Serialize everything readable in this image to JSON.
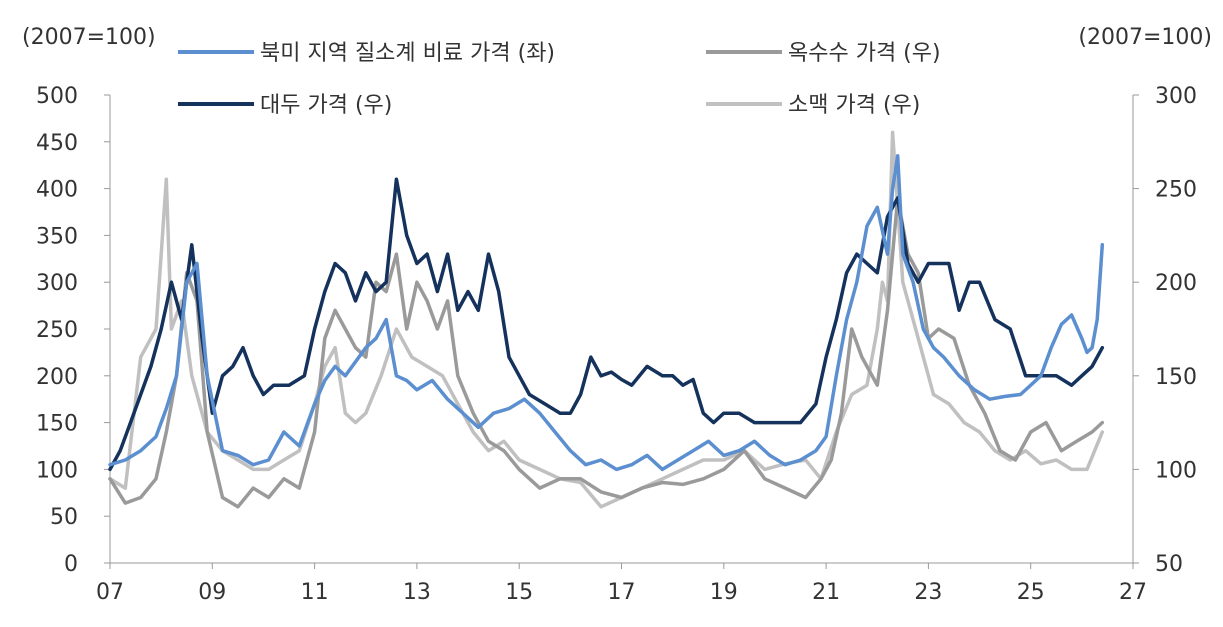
{
  "chart_data": {
    "type": "line",
    "left_unit": "(2007=100)",
    "right_unit": "(2007=100)",
    "x_ticks": [
      "07",
      "09",
      "11",
      "13",
      "15",
      "17",
      "19",
      "21",
      "23",
      "25",
      "27"
    ],
    "xlim": [
      2007,
      2027
    ],
    "left_axis": {
      "ticks": [
        "0",
        "50",
        "100",
        "150",
        "200",
        "250",
        "300",
        "350",
        "400",
        "450",
        "500"
      ],
      "ylim": [
        0,
        500
      ]
    },
    "right_axis": {
      "ticks": [
        "50",
        "100",
        "150",
        "200",
        "250",
        "300"
      ],
      "ylim": [
        50,
        300
      ]
    },
    "legend_position": "top",
    "series": [
      {
        "name": "북미 지역 질소계 비료 가격 (좌)",
        "axis": "left",
        "color": "#5b8fd0",
        "x": [
          2007.0,
          2007.3,
          2007.6,
          2007.9,
          2008.1,
          2008.3,
          2008.5,
          2008.7,
          2008.9,
          2009.2,
          2009.5,
          2009.8,
          2010.1,
          2010.4,
          2010.7,
          2011.0,
          2011.2,
          2011.4,
          2011.6,
          2011.8,
          2012.0,
          2012.2,
          2012.4,
          2012.6,
          2012.8,
          2013.0,
          2013.3,
          2013.6,
          2013.9,
          2014.2,
          2014.5,
          2014.8,
          2015.1,
          2015.4,
          2015.7,
          2016.0,
          2016.3,
          2016.6,
          2016.9,
          2017.2,
          2017.5,
          2017.8,
          2018.1,
          2018.4,
          2018.7,
          2019.0,
          2019.3,
          2019.6,
          2019.9,
          2020.2,
          2020.5,
          2020.8,
          2021.0,
          2021.2,
          2021.4,
          2021.6,
          2021.8,
          2022.0,
          2022.1,
          2022.2,
          2022.3,
          2022.4,
          2022.5,
          2022.7,
          2022.9,
          2023.1,
          2023.3,
          2023.6,
          2023.9,
          2024.2,
          2024.5,
          2024.8,
          2025.0,
          2025.2,
          2025.4,
          2025.6,
          2025.8,
          2026.0,
          2026.1,
          2026.2,
          2026.3,
          2026.4
        ],
        "values": [
          105,
          110,
          120,
          135,
          165,
          200,
          300,
          320,
          200,
          120,
          115,
          105,
          110,
          140,
          125,
          170,
          195,
          210,
          200,
          215,
          230,
          240,
          260,
          200,
          195,
          185,
          195,
          175,
          160,
          145,
          160,
          165,
          175,
          160,
          140,
          120,
          105,
          110,
          100,
          105,
          115,
          100,
          110,
          120,
          130,
          115,
          120,
          130,
          115,
          105,
          110,
          120,
          135,
          200,
          260,
          300,
          360,
          380,
          355,
          330,
          400,
          435,
          330,
          300,
          250,
          230,
          220,
          200,
          185,
          175,
          178,
          180,
          190,
          200,
          230,
          255,
          265,
          240,
          225,
          230,
          260,
          340
        ]
      },
      {
        "name": "옥수수 가격 (우)",
        "axis": "right",
        "color": "#9a9a9a",
        "x": [
          2007.0,
          2007.3,
          2007.6,
          2007.9,
          2008.1,
          2008.3,
          2008.5,
          2008.7,
          2008.9,
          2009.2,
          2009.5,
          2009.8,
          2010.1,
          2010.4,
          2010.7,
          2011.0,
          2011.2,
          2011.4,
          2011.6,
          2011.8,
          2012.0,
          2012.2,
          2012.4,
          2012.6,
          2012.8,
          2013.0,
          2013.2,
          2013.4,
          2013.6,
          2013.8,
          2014.1,
          2014.4,
          2014.7,
          2015.0,
          2015.4,
          2015.8,
          2016.2,
          2016.6,
          2017.0,
          2017.4,
          2017.8,
          2018.2,
          2018.6,
          2019.0,
          2019.4,
          2019.8,
          2020.2,
          2020.6,
          2020.9,
          2021.1,
          2021.3,
          2021.5,
          2021.7,
          2022.0,
          2022.2,
          2022.4,
          2022.6,
          2022.8,
          2023.0,
          2023.2,
          2023.5,
          2023.8,
          2024.1,
          2024.4,
          2024.7,
          2025.0,
          2025.3,
          2025.6,
          2025.9,
          2026.2,
          2026.4
        ],
        "values": [
          95,
          82,
          85,
          95,
          120,
          150,
          205,
          190,
          120,
          85,
          80,
          90,
          85,
          95,
          90,
          120,
          170,
          185,
          175,
          165,
          160,
          200,
          195,
          215,
          175,
          200,
          190,
          175,
          190,
          150,
          130,
          115,
          110,
          100,
          90,
          95,
          95,
          88,
          85,
          90,
          93,
          92,
          95,
          100,
          110,
          95,
          90,
          85,
          95,
          105,
          130,
          175,
          160,
          145,
          185,
          245,
          215,
          205,
          170,
          175,
          170,
          145,
          130,
          110,
          105,
          120,
          125,
          110,
          115,
          120,
          125
        ]
      },
      {
        "name": "대두 가격 (우)",
        "axis": "right",
        "color": "#15325d",
        "x": [
          2007.0,
          2007.2,
          2007.4,
          2007.6,
          2007.8,
          2008.0,
          2008.2,
          2008.4,
          2008.6,
          2008.8,
          2009.0,
          2009.2,
          2009.4,
          2009.6,
          2009.8,
          2010.0,
          2010.2,
          2010.5,
          2010.8,
          2011.0,
          2011.2,
          2011.4,
          2011.6,
          2011.8,
          2012.0,
          2012.2,
          2012.4,
          2012.6,
          2012.8,
          2013.0,
          2013.2,
          2013.4,
          2013.6,
          2013.8,
          2014.0,
          2014.2,
          2014.4,
          2014.6,
          2014.8,
          2015.0,
          2015.2,
          2015.5,
          2015.8,
          2016.0,
          2016.2,
          2016.4,
          2016.6,
          2016.8,
          2017.0,
          2017.2,
          2017.5,
          2017.8,
          2018.0,
          2018.2,
          2018.4,
          2018.6,
          2018.8,
          2019.0,
          2019.3,
          2019.6,
          2019.9,
          2020.2,
          2020.5,
          2020.8,
          2021.0,
          2021.2,
          2021.4,
          2021.6,
          2021.8,
          2022.0,
          2022.2,
          2022.4,
          2022.6,
          2022.8,
          2023.0,
          2023.2,
          2023.4,
          2023.6,
          2023.8,
          2024.0,
          2024.3,
          2024.6,
          2024.9,
          2025.2,
          2025.5,
          2025.8,
          2026.0,
          2026.2,
          2026.4
        ],
        "values": [
          100,
          110,
          125,
          140,
          155,
          175,
          200,
          180,
          220,
          170,
          130,
          150,
          155,
          165,
          150,
          140,
          145,
          145,
          150,
          175,
          195,
          210,
          205,
          190,
          205,
          195,
          200,
          255,
          225,
          210,
          215,
          195,
          215,
          185,
          195,
          185,
          215,
          195,
          160,
          150,
          140,
          135,
          130,
          130,
          140,
          160,
          150,
          152,
          148,
          145,
          155,
          150,
          150,
          145,
          148,
          130,
          125,
          130,
          130,
          125,
          125,
          125,
          125,
          135,
          160,
          180,
          205,
          215,
          210,
          205,
          235,
          245,
          210,
          200,
          210,
          210,
          210,
          185,
          200,
          200,
          180,
          175,
          150,
          150,
          150,
          145,
          150,
          155,
          165
        ]
      },
      {
        "name": "소맥 가격 (우)",
        "axis": "right",
        "color": "#c0c0c0",
        "x": [
          2007.0,
          2007.3,
          2007.6,
          2007.9,
          2008.0,
          2008.1,
          2008.2,
          2008.4,
          2008.6,
          2008.9,
          2009.2,
          2009.5,
          2009.8,
          2010.1,
          2010.4,
          2010.7,
          2011.0,
          2011.2,
          2011.4,
          2011.6,
          2011.8,
          2012.0,
          2012.3,
          2012.6,
          2012.9,
          2013.2,
          2013.5,
          2013.8,
          2014.1,
          2014.4,
          2014.7,
          2015.0,
          2015.4,
          2015.8,
          2016.2,
          2016.6,
          2017.0,
          2017.4,
          2017.8,
          2018.2,
          2018.6,
          2019.0,
          2019.4,
          2019.8,
          2020.2,
          2020.6,
          2020.9,
          2021.2,
          2021.5,
          2021.8,
          2022.0,
          2022.1,
          2022.2,
          2022.3,
          2022.5,
          2022.7,
          2022.9,
          2023.1,
          2023.4,
          2023.7,
          2024.0,
          2024.3,
          2024.6,
          2024.9,
          2025.2,
          2025.5,
          2025.8,
          2026.1,
          2026.4
        ],
        "values": [
          95,
          90,
          160,
          175,
          215,
          255,
          175,
          190,
          150,
          120,
          110,
          105,
          100,
          100,
          105,
          110,
          135,
          155,
          165,
          130,
          125,
          130,
          150,
          175,
          160,
          155,
          150,
          135,
          120,
          110,
          115,
          105,
          100,
          95,
          93,
          80,
          85,
          90,
          95,
          100,
          105,
          105,
          110,
          100,
          103,
          105,
          95,
          120,
          140,
          145,
          175,
          200,
          190,
          280,
          200,
          180,
          160,
          140,
          135,
          125,
          120,
          110,
          105,
          110,
          103,
          105,
          100,
          100,
          120
        ]
      }
    ]
  }
}
